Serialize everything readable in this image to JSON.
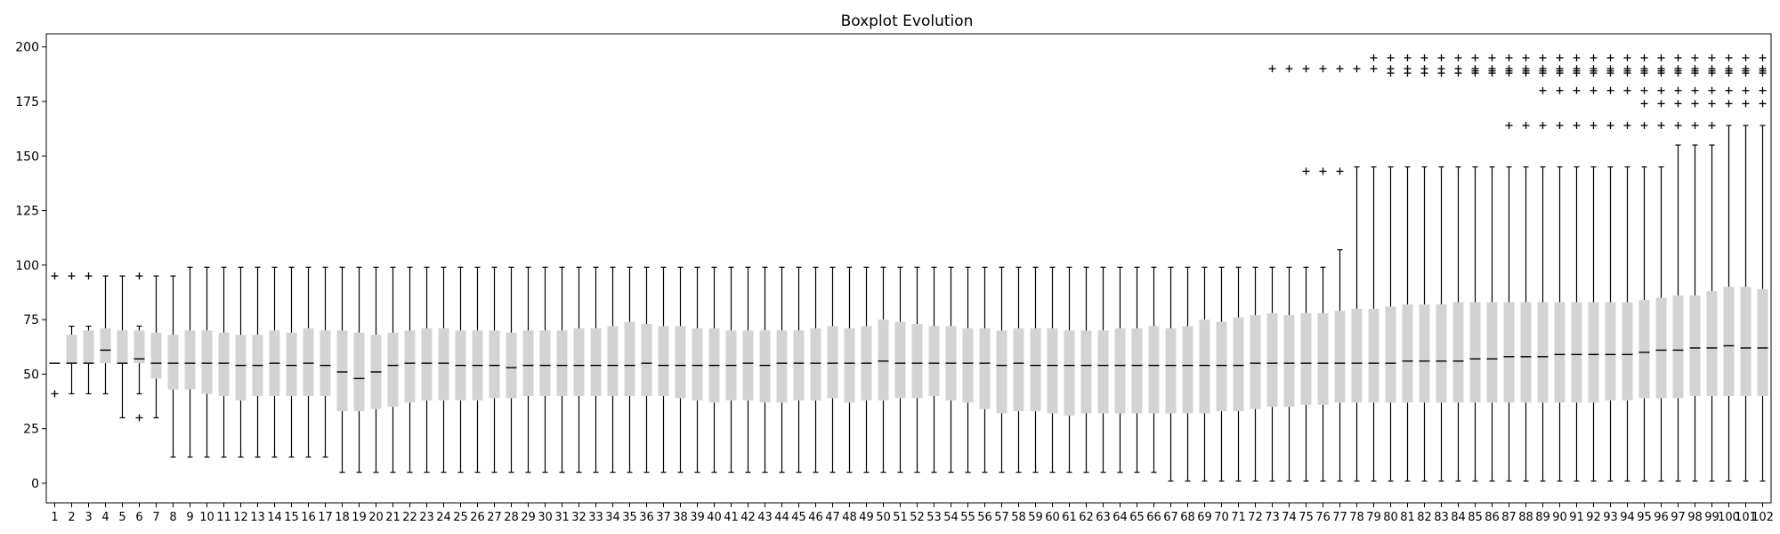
{
  "chart_data": {
    "type": "boxplot",
    "title": "Boxplot Evolution",
    "xlabel": "",
    "ylabel": "",
    "ylim": [
      -9,
      206
    ],
    "yticks": [
      0,
      25,
      50,
      75,
      100,
      125,
      150,
      175,
      200
    ],
    "grid": false,
    "legend": "none",
    "box_color": "#d3d3d3",
    "categories": [
      "1",
      "2",
      "3",
      "4",
      "5",
      "6",
      "7",
      "8",
      "9",
      "10",
      "11",
      "12",
      "13",
      "14",
      "15",
      "16",
      "17",
      "18",
      "19",
      "20",
      "21",
      "22",
      "23",
      "24",
      "25",
      "26",
      "27",
      "28",
      "29",
      "30",
      "31",
      "32",
      "33",
      "34",
      "35",
      "36",
      "37",
      "38",
      "39",
      "40",
      "41",
      "42",
      "43",
      "44",
      "45",
      "46",
      "47",
      "48",
      "49",
      "50",
      "51",
      "52",
      "53",
      "54",
      "55",
      "56",
      "57",
      "58",
      "59",
      "60",
      "61",
      "62",
      "63",
      "64",
      "65",
      "66",
      "67",
      "68",
      "69",
      "70",
      "71",
      "72",
      "73",
      "74",
      "75",
      "76",
      "77",
      "78",
      "79",
      "80",
      "81",
      "82",
      "83",
      "84",
      "85",
      "86",
      "87",
      "88",
      "89",
      "90",
      "91",
      "92",
      "93",
      "94",
      "95",
      "96",
      "97",
      "98",
      "99",
      "100",
      "101",
      "102"
    ],
    "boxes": [
      {
        "whislo": 55,
        "q1": 55,
        "med": 55,
        "q3": 55,
        "whishi": 55,
        "fliers": [
          41,
          95
        ]
      },
      {
        "whislo": 41,
        "q1": 55,
        "med": 55,
        "q3": 68,
        "whishi": 72,
        "fliers": [
          95
        ]
      },
      {
        "whislo": 41,
        "q1": 55,
        "med": 55,
        "q3": 70,
        "whishi": 72,
        "fliers": [
          95
        ]
      },
      {
        "whislo": 41,
        "q1": 55,
        "med": 61,
        "q3": 71,
        "whishi": 95,
        "fliers": []
      },
      {
        "whislo": 30,
        "q1": 55,
        "med": 55,
        "q3": 70,
        "whishi": 95,
        "fliers": []
      },
      {
        "whislo": 41,
        "q1": 55,
        "med": 57,
        "q3": 70,
        "whishi": 72,
        "fliers": [
          30,
          95
        ]
      },
      {
        "whislo": 30,
        "q1": 48,
        "med": 55,
        "q3": 69,
        "whishi": 95,
        "fliers": []
      },
      {
        "whislo": 12,
        "q1": 43,
        "med": 55,
        "q3": 68,
        "whishi": 95,
        "fliers": []
      },
      {
        "whislo": 12,
        "q1": 43,
        "med": 55,
        "q3": 70,
        "whishi": 99,
        "fliers": []
      },
      {
        "whislo": 12,
        "q1": 41,
        "med": 55,
        "q3": 70,
        "whishi": 99,
        "fliers": []
      },
      {
        "whislo": 12,
        "q1": 40,
        "med": 55,
        "q3": 69,
        "whishi": 99,
        "fliers": []
      },
      {
        "whislo": 12,
        "q1": 38,
        "med": 54,
        "q3": 68,
        "whishi": 99,
        "fliers": []
      },
      {
        "whislo": 12,
        "q1": 40,
        "med": 54,
        "q3": 68,
        "whishi": 99,
        "fliers": []
      },
      {
        "whislo": 12,
        "q1": 40,
        "med": 55,
        "q3": 70,
        "whishi": 99,
        "fliers": []
      },
      {
        "whislo": 12,
        "q1": 40,
        "med": 54,
        "q3": 69,
        "whishi": 99,
        "fliers": []
      },
      {
        "whislo": 12,
        "q1": 40,
        "med": 55,
        "q3": 71,
        "whishi": 99,
        "fliers": []
      },
      {
        "whislo": 12,
        "q1": 40,
        "med": 54,
        "q3": 70,
        "whishi": 99,
        "fliers": []
      },
      {
        "whislo": 5,
        "q1": 33,
        "med": 51,
        "q3": 70,
        "whishi": 99,
        "fliers": []
      },
      {
        "whislo": 5,
        "q1": 33,
        "med": 48,
        "q3": 69,
        "whishi": 99,
        "fliers": []
      },
      {
        "whislo": 5,
        "q1": 34,
        "med": 51,
        "q3": 68,
        "whishi": 99,
        "fliers": []
      },
      {
        "whislo": 5,
        "q1": 35,
        "med": 54,
        "q3": 69,
        "whishi": 99,
        "fliers": []
      },
      {
        "whislo": 5,
        "q1": 37,
        "med": 55,
        "q3": 70,
        "whishi": 99,
        "fliers": []
      },
      {
        "whislo": 5,
        "q1": 38,
        "med": 55,
        "q3": 71,
        "whishi": 99,
        "fliers": []
      },
      {
        "whislo": 5,
        "q1": 38,
        "med": 55,
        "q3": 71,
        "whishi": 99,
        "fliers": []
      },
      {
        "whislo": 5,
        "q1": 38,
        "med": 54,
        "q3": 70,
        "whishi": 99,
        "fliers": []
      },
      {
        "whislo": 5,
        "q1": 38,
        "med": 54,
        "q3": 70,
        "whishi": 99,
        "fliers": []
      },
      {
        "whislo": 5,
        "q1": 39,
        "med": 54,
        "q3": 70,
        "whishi": 99,
        "fliers": []
      },
      {
        "whislo": 5,
        "q1": 39,
        "med": 53,
        "q3": 69,
        "whishi": 99,
        "fliers": []
      },
      {
        "whislo": 5,
        "q1": 40,
        "med": 54,
        "q3": 70,
        "whishi": 99,
        "fliers": []
      },
      {
        "whislo": 5,
        "q1": 40,
        "med": 54,
        "q3": 70,
        "whishi": 99,
        "fliers": []
      },
      {
        "whislo": 5,
        "q1": 40,
        "med": 54,
        "q3": 70,
        "whishi": 99,
        "fliers": []
      },
      {
        "whislo": 5,
        "q1": 40,
        "med": 54,
        "q3": 71,
        "whishi": 99,
        "fliers": []
      },
      {
        "whislo": 5,
        "q1": 40,
        "med": 54,
        "q3": 71,
        "whishi": 99,
        "fliers": []
      },
      {
        "whislo": 5,
        "q1": 40,
        "med": 54,
        "q3": 72,
        "whishi": 99,
        "fliers": []
      },
      {
        "whislo": 5,
        "q1": 40,
        "med": 54,
        "q3": 74,
        "whishi": 99,
        "fliers": []
      },
      {
        "whislo": 5,
        "q1": 40,
        "med": 55,
        "q3": 73,
        "whishi": 99,
        "fliers": []
      },
      {
        "whislo": 5,
        "q1": 40,
        "med": 54,
        "q3": 72,
        "whishi": 99,
        "fliers": []
      },
      {
        "whislo": 5,
        "q1": 39,
        "med": 54,
        "q3": 72,
        "whishi": 99,
        "fliers": []
      },
      {
        "whislo": 5,
        "q1": 38,
        "med": 54,
        "q3": 71,
        "whishi": 99,
        "fliers": []
      },
      {
        "whislo": 5,
        "q1": 37,
        "med": 54,
        "q3": 71,
        "whishi": 99,
        "fliers": []
      },
      {
        "whislo": 5,
        "q1": 38,
        "med": 54,
        "q3": 70,
        "whishi": 99,
        "fliers": []
      },
      {
        "whislo": 5,
        "q1": 38,
        "med": 55,
        "q3": 70,
        "whishi": 99,
        "fliers": []
      },
      {
        "whislo": 5,
        "q1": 37,
        "med": 54,
        "q3": 70,
        "whishi": 99,
        "fliers": []
      },
      {
        "whislo": 5,
        "q1": 37,
        "med": 55,
        "q3": 70,
        "whishi": 99,
        "fliers": []
      },
      {
        "whislo": 5,
        "q1": 38,
        "med": 55,
        "q3": 70,
        "whishi": 99,
        "fliers": []
      },
      {
        "whislo": 5,
        "q1": 38,
        "med": 55,
        "q3": 71,
        "whishi": 99,
        "fliers": []
      },
      {
        "whislo": 5,
        "q1": 39,
        "med": 55,
        "q3": 72,
        "whishi": 99,
        "fliers": []
      },
      {
        "whislo": 5,
        "q1": 37,
        "med": 55,
        "q3": 71,
        "whishi": 99,
        "fliers": []
      },
      {
        "whislo": 5,
        "q1": 38,
        "med": 55,
        "q3": 72,
        "whishi": 99,
        "fliers": []
      },
      {
        "whislo": 5,
        "q1": 38,
        "med": 56,
        "q3": 75,
        "whishi": 99,
        "fliers": []
      },
      {
        "whislo": 5,
        "q1": 39,
        "med": 55,
        "q3": 74,
        "whishi": 99,
        "fliers": []
      },
      {
        "whislo": 5,
        "q1": 39,
        "med": 55,
        "q3": 73,
        "whishi": 99,
        "fliers": []
      },
      {
        "whislo": 5,
        "q1": 40,
        "med": 55,
        "q3": 72,
        "whishi": 99,
        "fliers": []
      },
      {
        "whislo": 5,
        "q1": 38,
        "med": 55,
        "q3": 72,
        "whishi": 99,
        "fliers": []
      },
      {
        "whislo": 5,
        "q1": 37,
        "med": 55,
        "q3": 71,
        "whishi": 99,
        "fliers": []
      },
      {
        "whislo": 5,
        "q1": 34,
        "med": 55,
        "q3": 71,
        "whishi": 99,
        "fliers": []
      },
      {
        "whislo": 5,
        "q1": 32,
        "med": 54,
        "q3": 70,
        "whishi": 99,
        "fliers": []
      },
      {
        "whislo": 5,
        "q1": 33,
        "med": 55,
        "q3": 71,
        "whishi": 99,
        "fliers": []
      },
      {
        "whislo": 5,
        "q1": 33,
        "med": 54,
        "q3": 71,
        "whishi": 99,
        "fliers": []
      },
      {
        "whislo": 5,
        "q1": 32,
        "med": 54,
        "q3": 71,
        "whishi": 99,
        "fliers": []
      },
      {
        "whislo": 5,
        "q1": 31,
        "med": 54,
        "q3": 70,
        "whishi": 99,
        "fliers": []
      },
      {
        "whislo": 5,
        "q1": 32,
        "med": 54,
        "q3": 70,
        "whishi": 99,
        "fliers": []
      },
      {
        "whislo": 5,
        "q1": 32,
        "med": 54,
        "q3": 70,
        "whishi": 99,
        "fliers": []
      },
      {
        "whislo": 5,
        "q1": 32,
        "med": 54,
        "q3": 71,
        "whishi": 99,
        "fliers": []
      },
      {
        "whislo": 5,
        "q1": 32,
        "med": 54,
        "q3": 71,
        "whishi": 99,
        "fliers": []
      },
      {
        "whislo": 5,
        "q1": 32,
        "med": 54,
        "q3": 72,
        "whishi": 99,
        "fliers": []
      },
      {
        "whislo": 1,
        "q1": 32,
        "med": 54,
        "q3": 71,
        "whishi": 99,
        "fliers": []
      },
      {
        "whislo": 1,
        "q1": 32,
        "med": 54,
        "q3": 72,
        "whishi": 99,
        "fliers": []
      },
      {
        "whislo": 1,
        "q1": 32,
        "med": 54,
        "q3": 75,
        "whishi": 99,
        "fliers": []
      },
      {
        "whislo": 1,
        "q1": 33,
        "med": 54,
        "q3": 74,
        "whishi": 99,
        "fliers": []
      },
      {
        "whislo": 1,
        "q1": 33,
        "med": 54,
        "q3": 76,
        "whishi": 99,
        "fliers": []
      },
      {
        "whislo": 1,
        "q1": 34,
        "med": 55,
        "q3": 77,
        "whishi": 99,
        "fliers": []
      },
      {
        "whislo": 1,
        "q1": 35,
        "med": 55,
        "q3": 78,
        "whishi": 99,
        "fliers": [
          190
        ]
      },
      {
        "whislo": 1,
        "q1": 35,
        "med": 55,
        "q3": 77,
        "whishi": 99,
        "fliers": [
          190
        ]
      },
      {
        "whislo": 1,
        "q1": 36,
        "med": 55,
        "q3": 78,
        "whishi": 99,
        "fliers": [
          143,
          190
        ]
      },
      {
        "whislo": 1,
        "q1": 36,
        "med": 55,
        "q3": 78,
        "whishi": 99,
        "fliers": [
          143,
          190
        ]
      },
      {
        "whislo": 1,
        "q1": 37,
        "med": 55,
        "q3": 79,
        "whishi": 107,
        "fliers": [
          143,
          190
        ]
      },
      {
        "whislo": 1,
        "q1": 37,
        "med": 55,
        "q3": 80,
        "whishi": 145,
        "fliers": [
          190
        ]
      },
      {
        "whislo": 1,
        "q1": 37,
        "med": 55,
        "q3": 80,
        "whishi": 145,
        "fliers": [
          190,
          195
        ]
      },
      {
        "whislo": 1,
        "q1": 37,
        "med": 55,
        "q3": 81,
        "whishi": 145,
        "fliers": [
          188,
          190,
          195
        ]
      },
      {
        "whislo": 1,
        "q1": 37,
        "med": 56,
        "q3": 82,
        "whishi": 145,
        "fliers": [
          188,
          190,
          195
        ]
      },
      {
        "whislo": 1,
        "q1": 37,
        "med": 56,
        "q3": 82,
        "whishi": 145,
        "fliers": [
          188,
          190,
          195
        ]
      },
      {
        "whislo": 1,
        "q1": 37,
        "med": 56,
        "q3": 82,
        "whishi": 145,
        "fliers": [
          188,
          190,
          195
        ]
      },
      {
        "whislo": 1,
        "q1": 37,
        "med": 56,
        "q3": 83,
        "whishi": 145,
        "fliers": [
          188,
          190,
          195
        ]
      },
      {
        "whislo": 1,
        "q1": 37,
        "med": 57,
        "q3": 83,
        "whishi": 145,
        "fliers": [
          188,
          189,
          190,
          195
        ]
      },
      {
        "whislo": 1,
        "q1": 37,
        "med": 57,
        "q3": 83,
        "whishi": 145,
        "fliers": [
          188,
          189,
          190,
          195
        ]
      },
      {
        "whislo": 1,
        "q1": 37,
        "med": 58,
        "q3": 83,
        "whishi": 145,
        "fliers": [
          164,
          188,
          189,
          190,
          195
        ]
      },
      {
        "whislo": 1,
        "q1": 37,
        "med": 58,
        "q3": 83,
        "whishi": 145,
        "fliers": [
          164,
          188,
          189,
          190,
          195
        ]
      },
      {
        "whislo": 1,
        "q1": 37,
        "med": 58,
        "q3": 83,
        "whishi": 145,
        "fliers": [
          164,
          180,
          188,
          189,
          190,
          195
        ]
      },
      {
        "whislo": 1,
        "q1": 37,
        "med": 59,
        "q3": 83,
        "whishi": 145,
        "fliers": [
          164,
          180,
          188,
          189,
          190,
          195
        ]
      },
      {
        "whislo": 1,
        "q1": 37,
        "med": 59,
        "q3": 83,
        "whishi": 145,
        "fliers": [
          164,
          180,
          188,
          189,
          190,
          195
        ]
      },
      {
        "whislo": 1,
        "q1": 37,
        "med": 59,
        "q3": 83,
        "whishi": 145,
        "fliers": [
          164,
          180,
          188,
          189,
          190,
          195
        ]
      },
      {
        "whislo": 1,
        "q1": 38,
        "med": 59,
        "q3": 83,
        "whishi": 145,
        "fliers": [
          164,
          180,
          188,
          189,
          190,
          195
        ]
      },
      {
        "whislo": 1,
        "q1": 38,
        "med": 59,
        "q3": 83,
        "whishi": 145,
        "fliers": [
          164,
          180,
          188,
          189,
          190,
          195
        ]
      },
      {
        "whislo": 1,
        "q1": 39,
        "med": 60,
        "q3": 84,
        "whishi": 145,
        "fliers": [
          164,
          174,
          180,
          188,
          189,
          190,
          195
        ]
      },
      {
        "whislo": 1,
        "q1": 39,
        "med": 61,
        "q3": 85,
        "whishi": 145,
        "fliers": [
          164,
          174,
          180,
          188,
          189,
          190,
          195
        ]
      },
      {
        "whislo": 1,
        "q1": 39,
        "med": 61,
        "q3": 86,
        "whishi": 155,
        "fliers": [
          164,
          174,
          180,
          188,
          189,
          190,
          195
        ]
      },
      {
        "whislo": 1,
        "q1": 40,
        "med": 62,
        "q3": 86,
        "whishi": 155,
        "fliers": [
          164,
          174,
          180,
          188,
          189,
          190,
          195
        ]
      },
      {
        "whislo": 1,
        "q1": 40,
        "med": 62,
        "q3": 88,
        "whishi": 155,
        "fliers": [
          164,
          174,
          180,
          188,
          189,
          190,
          195
        ]
      },
      {
        "whislo": 1,
        "q1": 40,
        "med": 63,
        "q3": 90,
        "whishi": 164,
        "fliers": [
          174,
          180,
          188,
          189,
          190,
          195
        ]
      },
      {
        "whislo": 1,
        "q1": 40,
        "med": 62,
        "q3": 90,
        "whishi": 164,
        "fliers": [
          174,
          180,
          188,
          189,
          190,
          195
        ]
      },
      {
        "whislo": 1,
        "q1": 40,
        "med": 62,
        "q3": 89,
        "whishi": 164,
        "fliers": [
          174,
          180,
          188,
          189,
          190,
          195
        ]
      }
    ]
  }
}
